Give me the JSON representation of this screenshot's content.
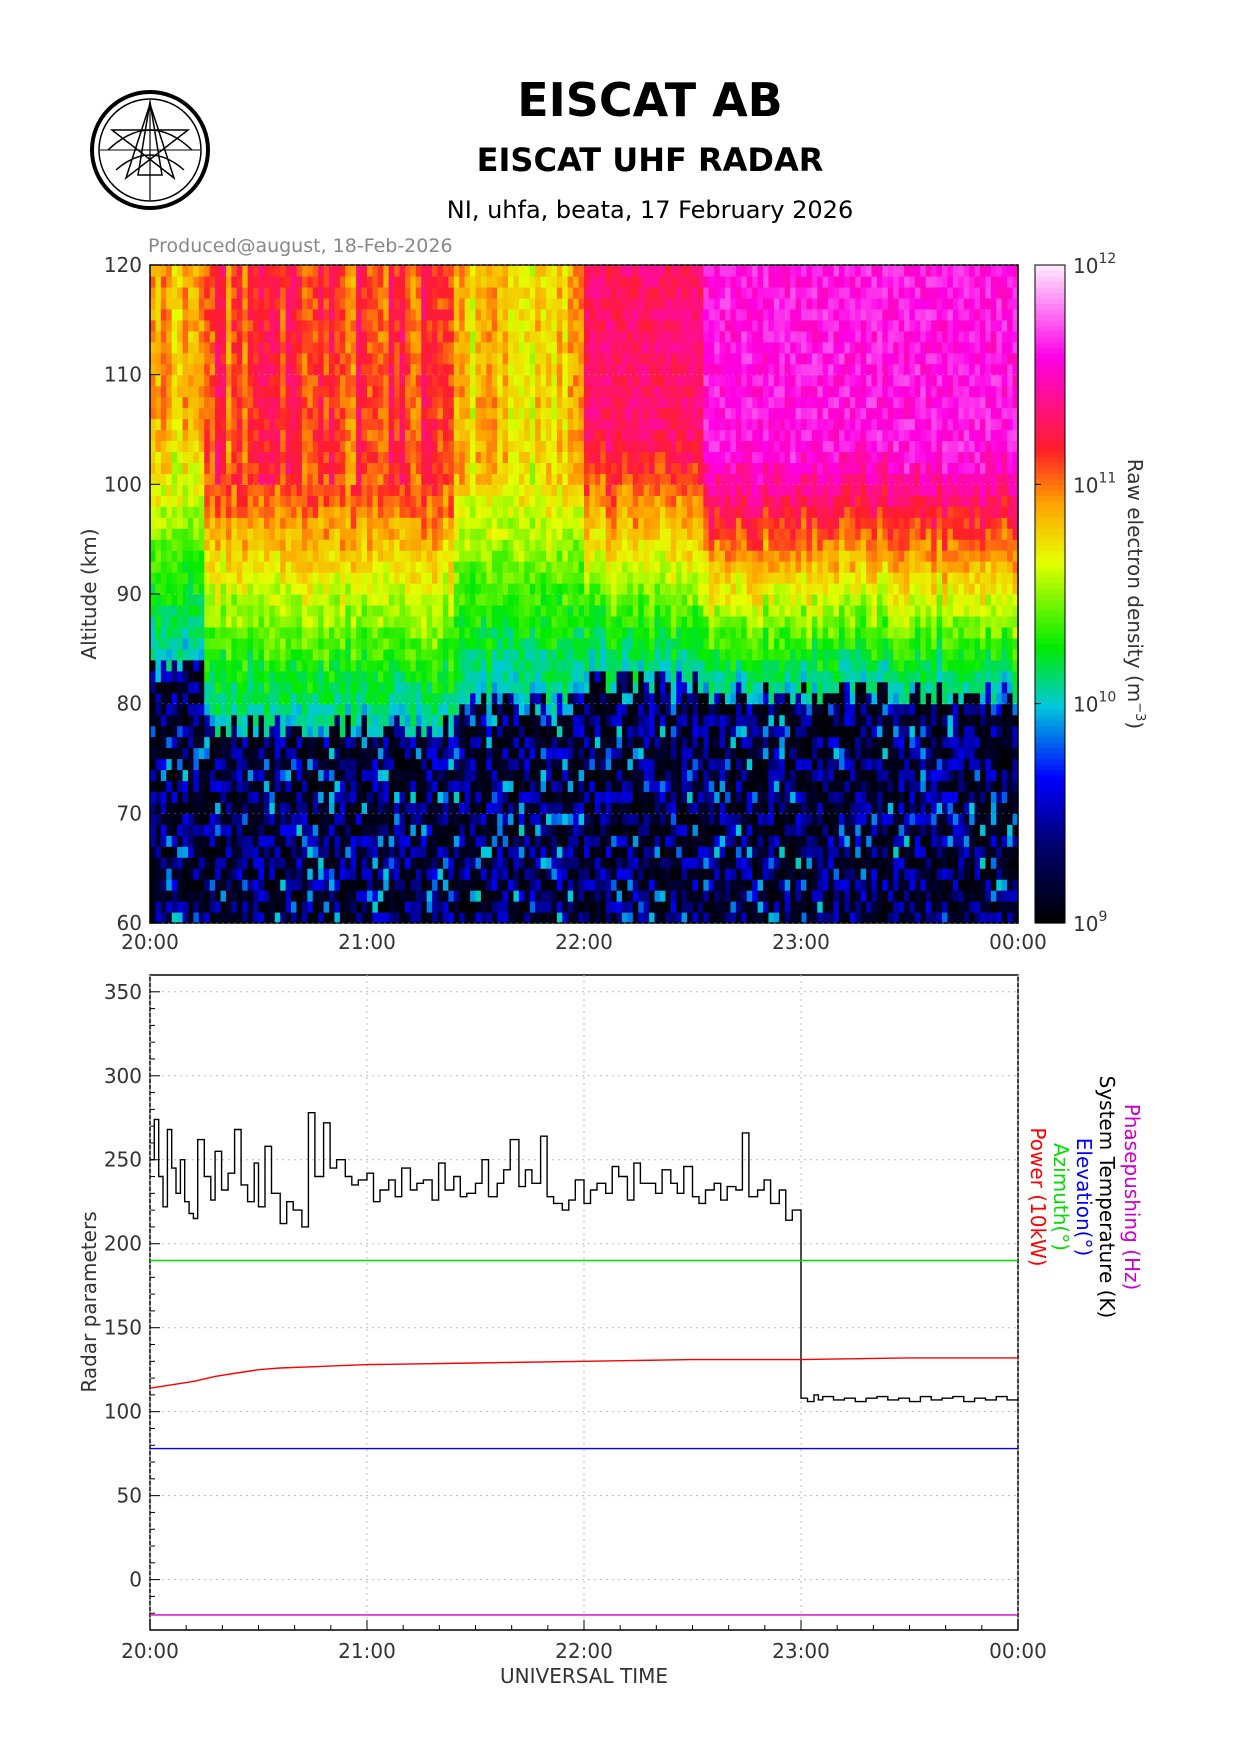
{
  "header": {
    "title": "EISCAT AB",
    "subtitle": "EISCAT UHF RADAR",
    "experiment": "NI, uhfa, beata, 17 February 2026",
    "produced": "Produced@august, 18-Feb-2026"
  },
  "colors": {
    "system_temperature": "#000000",
    "azimuth": "#00dd00",
    "elevation": "#0000ff",
    "power": "#ff0000",
    "phasepushing": "#cc00cc",
    "produced_text": "#888888"
  },
  "chart_data": [
    {
      "type": "heatmap",
      "ylabel": "Altitude (km)",
      "ylim": [
        60,
        120
      ],
      "yticks": [
        "60",
        "70",
        "80",
        "90",
        "100",
        "110",
        "120"
      ],
      "xticks": [
        "20:00",
        "21:00",
        "22:00",
        "23:00",
        "00:00"
      ],
      "xlim_hours": [
        20,
        24
      ],
      "colorbar": {
        "label": "Raw electron density (m",
        "label_sup": "−3",
        "label_end": ")",
        "scale": "log",
        "range": [
          1000000000.0,
          1000000000000.0
        ],
        "ticks": [
          {
            "base": "10",
            "exp": "9",
            "value": 9
          },
          {
            "base": "10",
            "exp": "10",
            "value": 10
          },
          {
            "base": "10",
            "exp": "11",
            "value": 11
          },
          {
            "base": "10",
            "exp": "12",
            "value": 12
          }
        ]
      },
      "description_segments": [
        {
          "from": 20.0,
          "to": 20.25,
          "floor_km": 83,
          "peak_log": 10.9
        },
        {
          "from": 20.25,
          "to": 21.4,
          "floor_km": 78,
          "peak_log": 11.1
        },
        {
          "from": 21.4,
          "to": 22.0,
          "floor_km": 80,
          "peak_log": 10.8
        },
        {
          "from": 22.0,
          "to": 22.55,
          "floor_km": 82,
          "peak_log": 11.3
        },
        {
          "from": 22.55,
          "to": 24.0,
          "floor_km": 81,
          "peak_log": 11.6
        }
      ]
    },
    {
      "type": "line",
      "ylabel": "Radar parameters",
      "xlabel": "UNIVERSAL TIME",
      "ylim": [
        -30,
        360
      ],
      "yticks": [
        "0",
        "50",
        "100",
        "150",
        "200",
        "250",
        "300",
        "350"
      ],
      "xticks": [
        "20:00",
        "21:00",
        "22:00",
        "23:00",
        "00:00"
      ],
      "xlim_hours": [
        20,
        24
      ],
      "series": [
        {
          "name": "Phasepushing (Hz)",
          "color": "#cc00cc",
          "x": [
            20,
            24
          ],
          "values": [
            -21,
            -21
          ]
        },
        {
          "name": "System Temperature (K)",
          "color": "#000000",
          "x": [
            20.0,
            20.02,
            20.04,
            20.06,
            20.08,
            20.1,
            20.12,
            20.14,
            20.16,
            20.18,
            20.2,
            20.22,
            20.25,
            20.28,
            20.3,
            20.33,
            20.36,
            20.39,
            20.42,
            20.45,
            20.48,
            20.5,
            20.53,
            20.56,
            20.6,
            20.63,
            20.66,
            20.7,
            20.73,
            20.76,
            20.8,
            20.83,
            20.86,
            20.9,
            20.93,
            20.96,
            21.0,
            21.03,
            21.06,
            21.1,
            21.13,
            21.16,
            21.2,
            21.23,
            21.26,
            21.3,
            21.33,
            21.36,
            21.4,
            21.43,
            21.46,
            21.5,
            21.53,
            21.56,
            21.6,
            21.63,
            21.66,
            21.7,
            21.73,
            21.76,
            21.8,
            21.83,
            21.86,
            21.9,
            21.93,
            21.96,
            22.0,
            22.03,
            22.06,
            22.1,
            22.13,
            22.16,
            22.2,
            22.23,
            22.26,
            22.3,
            22.33,
            22.36,
            22.4,
            22.43,
            22.46,
            22.5,
            22.53,
            22.56,
            22.6,
            22.63,
            22.66,
            22.7,
            22.73,
            22.76,
            22.8,
            22.83,
            22.86,
            22.9,
            22.93,
            22.96,
            23.0,
            23.03,
            23.06,
            23.08,
            23.1,
            23.15,
            23.2,
            23.25,
            23.3,
            23.35,
            23.4,
            23.45,
            23.5,
            23.55,
            23.6,
            23.65,
            23.7,
            23.75,
            23.8,
            23.85,
            23.9,
            23.95,
            24.0
          ],
          "values": [
            250,
            274,
            240,
            222,
            268,
            245,
            230,
            250,
            225,
            218,
            215,
            262,
            240,
            226,
            255,
            232,
            242,
            268,
            235,
            225,
            248,
            222,
            258,
            230,
            212,
            225,
            220,
            210,
            278,
            240,
            272,
            245,
            250,
            240,
            235,
            238,
            242,
            225,
            232,
            238,
            228,
            245,
            232,
            236,
            238,
            226,
            248,
            232,
            240,
            228,
            230,
            236,
            250,
            228,
            236,
            244,
            262,
            234,
            244,
            236,
            264,
            228,
            224,
            220,
            226,
            238,
            224,
            232,
            236,
            230,
            246,
            240,
            226,
            248,
            236,
            236,
            230,
            244,
            236,
            230,
            246,
            228,
            224,
            232,
            236,
            226,
            234,
            232,
            266,
            228,
            232,
            238,
            224,
            232,
            214,
            220,
            108,
            106,
            110,
            107,
            109,
            107,
            108,
            106,
            108,
            109,
            107,
            108,
            106,
            109,
            107,
            108,
            109,
            106,
            108,
            107,
            109,
            107,
            108
          ]
        },
        {
          "name": "Elevation(°)",
          "color": "#0000ff",
          "x": [
            20,
            24
          ],
          "values": [
            78,
            78
          ]
        },
        {
          "name": "Azimuth(°)",
          "color": "#00dd00",
          "x": [
            20,
            24
          ],
          "values": [
            190,
            190
          ]
        },
        {
          "name": "Power (10kW)",
          "color": "#ff0000",
          "x": [
            20.0,
            20.1,
            20.2,
            20.3,
            20.4,
            20.5,
            20.6,
            20.8,
            21.0,
            21.5,
            22.0,
            22.5,
            23.0,
            23.5,
            24.0
          ],
          "values": [
            114,
            116,
            118,
            121,
            123,
            125,
            126,
            127,
            128,
            129,
            130,
            131,
            131,
            132,
            132
          ]
        }
      ]
    }
  ]
}
